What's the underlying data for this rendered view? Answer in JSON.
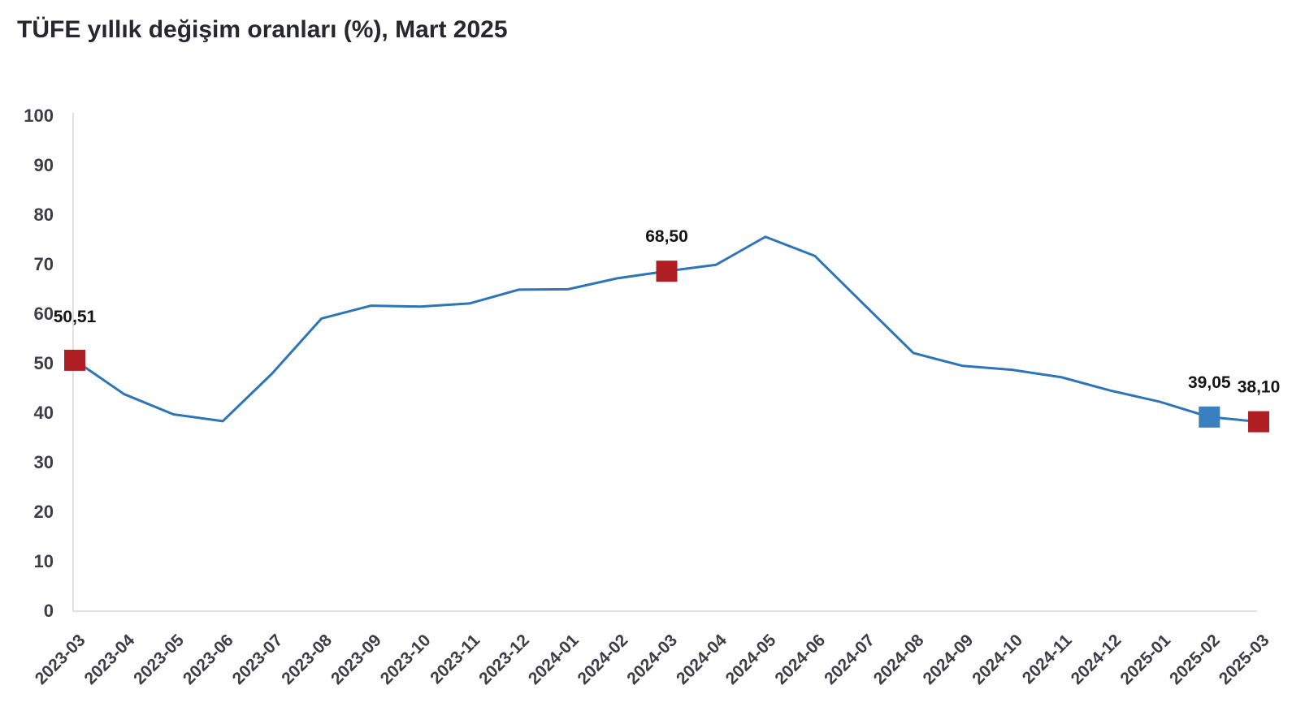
{
  "page": {
    "background_color": "#ffffff"
  },
  "chart_data": {
    "type": "line",
    "title": "TÜFE yıllık değişim oranları (%), Mart 2025",
    "xlabel": "",
    "ylabel": "",
    "grid": false,
    "legend": "none",
    "ylim": [
      0,
      100
    ],
    "ytick_step": 10,
    "ytick_labels": [
      "0",
      "10",
      "20",
      "30",
      "40",
      "50",
      "60",
      "70",
      "80",
      "90",
      "100"
    ],
    "categories": [
      "2023-03",
      "2023-04",
      "2023-05",
      "2023-06",
      "2023-07",
      "2023-08",
      "2023-09",
      "2023-10",
      "2023-11",
      "2023-12",
      "2024-01",
      "2024-02",
      "2024-03",
      "2024-04",
      "2024-05",
      "2024-06",
      "2024-07",
      "2024-08",
      "2024-09",
      "2024-10",
      "2024-11",
      "2024-12",
      "2025-01",
      "2025-02",
      "2025-03"
    ],
    "values": [
      50.51,
      43.68,
      39.59,
      38.21,
      47.83,
      58.94,
      61.53,
      61.36,
      61.98,
      64.77,
      64.86,
      67.07,
      68.5,
      69.8,
      75.45,
      71.6,
      61.78,
      51.97,
      49.38,
      48.58,
      47.09,
      44.38,
      42.12,
      39.05,
      38.1
    ],
    "annotated_points": [
      {
        "category": "2023-03",
        "value": 50.51,
        "label": "50,51",
        "marker_color": "#b01f24"
      },
      {
        "category": "2024-03",
        "value": 68.5,
        "label": "68,50",
        "marker_color": "#b01f24"
      },
      {
        "category": "2025-02",
        "value": 39.05,
        "label": "39,05",
        "marker_color": "#3a80c1"
      },
      {
        "category": "2025-03",
        "value": 38.1,
        "label": "38,10",
        "marker_color": "#b01f24"
      }
    ],
    "colors": {
      "line": "#2e75b6",
      "axis_line": "#e0e0e0",
      "tick_label": "#3d3d45",
      "title": "#27272f",
      "annotation_text": "#141414"
    }
  }
}
